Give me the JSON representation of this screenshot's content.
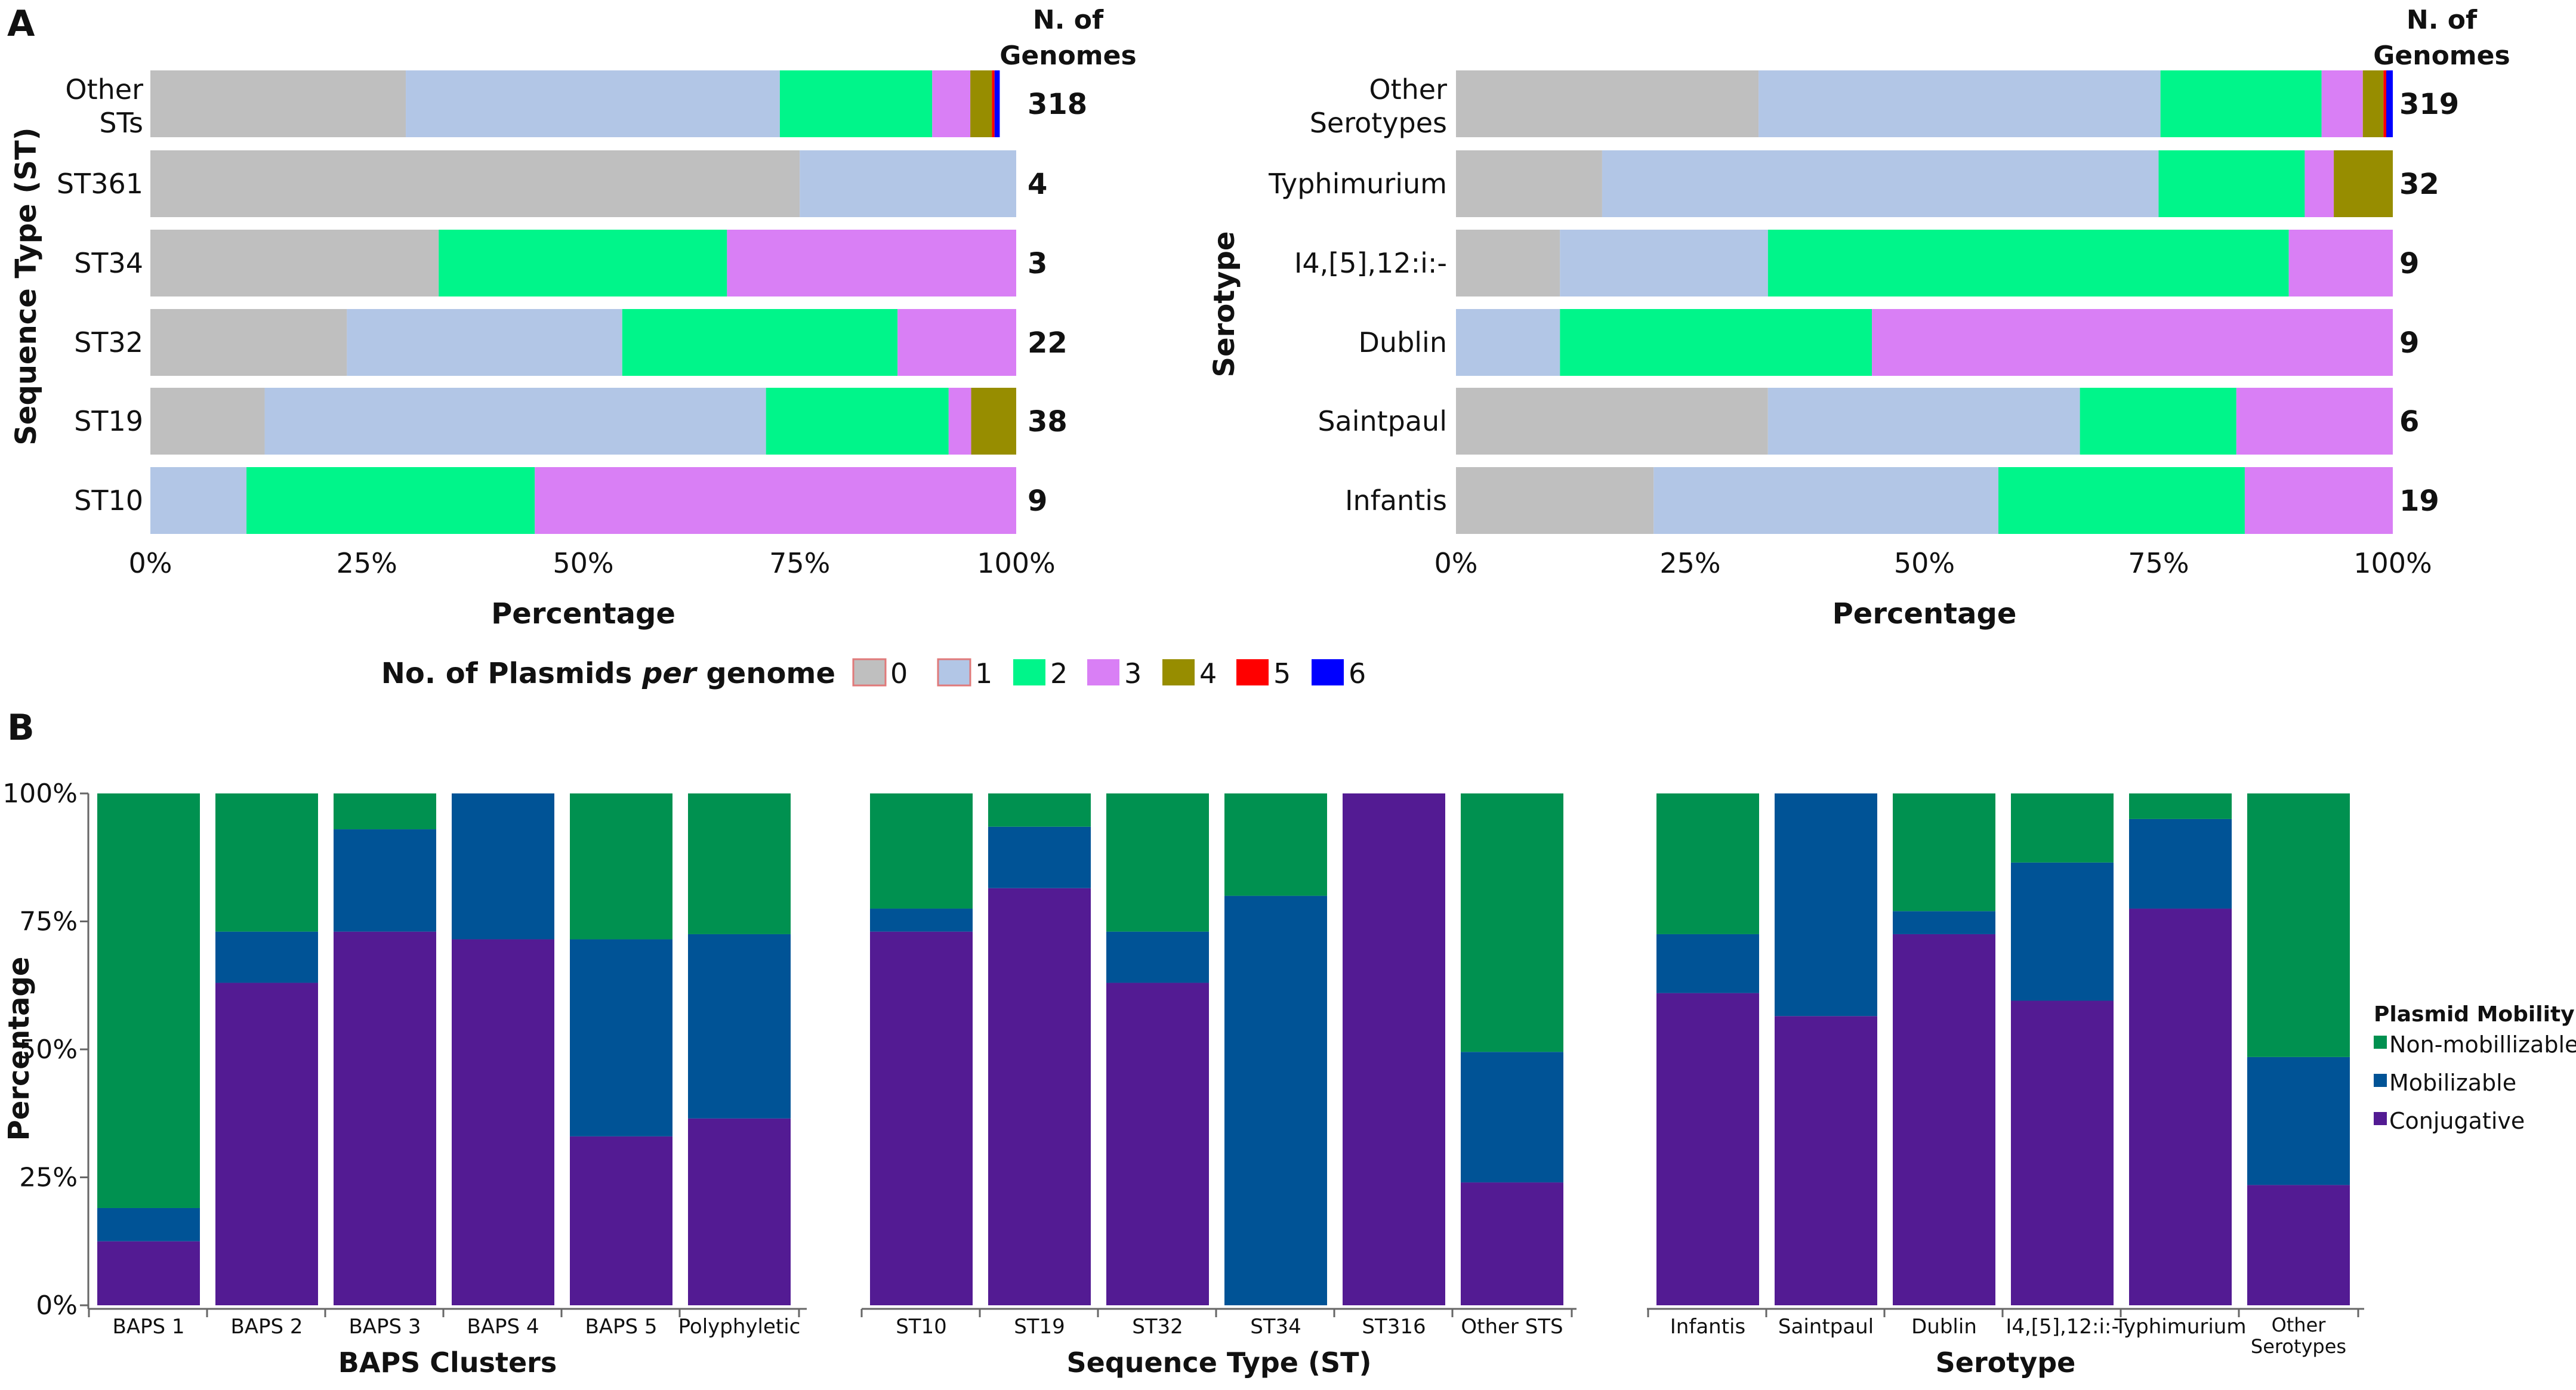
{
  "colors": {
    "count": [
      "#bfbfbf",
      "#b2c6e6",
      "#00f58a",
      "#d97ff5",
      "#978d00",
      "#ff0000",
      "#0000ff"
    ],
    "mobility": {
      "conjugative": "#531b93",
      "mobilizable": "#005396",
      "nonmob": "#009150"
    }
  },
  "panel_labels": [
    "A",
    "B"
  ],
  "legend_a": {
    "title_pre": "No. of Plasmids ",
    "title_em": "per",
    "title_post": " genome",
    "items": [
      "0",
      "1",
      "2",
      "3",
      "4",
      "5",
      "6"
    ]
  },
  "legend_b": {
    "title": "Plasmid Mobility",
    "items": [
      "Non-mobillizable",
      "Mobilizable",
      "Conjugative"
    ]
  },
  "chart_data": [
    {
      "id": "a1",
      "type": "bar",
      "orientation": "horizontal",
      "stacked": true,
      "ylabel": "Sequence Type (ST)",
      "xlabel": "Percentage",
      "xlim": [
        0,
        100
      ],
      "xticks": [
        "0%",
        "25%",
        "50%",
        "75%",
        "100%"
      ],
      "count_header": [
        "N. of",
        "Genomes"
      ],
      "series_names": [
        "0",
        "1",
        "2",
        "3",
        "4",
        "5",
        "6"
      ],
      "rows": [
        {
          "label": [
            "Other",
            "STs"
          ],
          "count": "318",
          "values": [
            29.5,
            43.2,
            17.6,
            4.4,
            2.5,
            0.3,
            0.6
          ]
        },
        {
          "label": [
            "ST361"
          ],
          "count": "4",
          "values": [
            75,
            25,
            0,
            0,
            0,
            0,
            0
          ]
        },
        {
          "label": [
            "ST34"
          ],
          "count": "3",
          "values": [
            33.3,
            0,
            33.3,
            33.4,
            0,
            0,
            0
          ]
        },
        {
          "label": [
            "ST32"
          ],
          "count": "22",
          "values": [
            22.7,
            31.8,
            31.8,
            13.7,
            0,
            0,
            0
          ]
        },
        {
          "label": [
            "ST19"
          ],
          "count": "38",
          "values": [
            13.2,
            57.9,
            21.1,
            2.6,
            5.2,
            0,
            0
          ]
        },
        {
          "label": [
            "ST10"
          ],
          "count": "9",
          "values": [
            0,
            11.1,
            33.3,
            55.6,
            0,
            0,
            0
          ]
        }
      ]
    },
    {
      "id": "a2",
      "type": "bar",
      "orientation": "horizontal",
      "stacked": true,
      "ylabel": "Serotype",
      "xlabel": "Percentage",
      "xlim": [
        0,
        100
      ],
      "xticks": [
        "0%",
        "25%",
        "50%",
        "75%",
        "100%"
      ],
      "count_header": [
        "N. of",
        "Genomes"
      ],
      "series_names": [
        "0",
        "1",
        "2",
        "3",
        "4",
        "5",
        "6"
      ],
      "rows": [
        {
          "label": [
            "Other",
            "Serotypes"
          ],
          "count": "319",
          "values": [
            32.3,
            42.9,
            17.2,
            4.4,
            2.2,
            0.3,
            0.7
          ]
        },
        {
          "label": [
            "Typhimurium"
          ],
          "count": "32",
          "values": [
            15.6,
            59.4,
            15.6,
            3.1,
            6.3,
            0,
            0
          ]
        },
        {
          "label": [
            "I4,[5],12:i:-"
          ],
          "count": "9",
          "values": [
            11.1,
            22.2,
            55.6,
            11.1,
            0,
            0,
            0
          ]
        },
        {
          "label": [
            "Dublin"
          ],
          "count": "9",
          "values": [
            0,
            11.1,
            33.3,
            55.6,
            0,
            0,
            0
          ]
        },
        {
          "label": [
            "Saintpaul"
          ],
          "count": "6",
          "values": [
            33.3,
            33.3,
            16.7,
            16.7,
            0,
            0,
            0
          ]
        },
        {
          "label": [
            "Infantis"
          ],
          "count": "19",
          "values": [
            21.1,
            36.8,
            26.3,
            15.8,
            0,
            0,
            0
          ]
        }
      ]
    },
    {
      "id": "b1",
      "type": "bar",
      "stacked": true,
      "ylabel": "Percentage",
      "xlabel": "BAPS Clusters",
      "ylim": [
        0,
        100
      ],
      "yticks": [
        "0%",
        "25%",
        "50%",
        "75%",
        "100%"
      ],
      "series_names": [
        "Conjugative",
        "Mobilizable",
        "Non-mobillizable"
      ],
      "categories": [
        [
          "BAPS 1"
        ],
        [
          "BAPS 2"
        ],
        [
          "BAPS 3"
        ],
        [
          "BAPS 4"
        ],
        [
          "BAPS 5"
        ],
        [
          "Polyphyletic"
        ]
      ],
      "values": [
        [
          12.5,
          6.5,
          81
        ],
        [
          63,
          10,
          27
        ],
        [
          73,
          20,
          7
        ],
        [
          71.5,
          28.5,
          0
        ],
        [
          33,
          38.5,
          28.5
        ],
        [
          36.5,
          36,
          27.5
        ]
      ]
    },
    {
      "id": "b2",
      "type": "bar",
      "stacked": true,
      "xlabel": "Sequence Type (ST)",
      "ylim": [
        0,
        100
      ],
      "series_names": [
        "Conjugative",
        "Mobilizable",
        "Non-mobillizable"
      ],
      "categories": [
        [
          "ST10"
        ],
        [
          "ST19"
        ],
        [
          "ST32"
        ],
        [
          "ST34"
        ],
        [
          "ST316"
        ],
        [
          "Other STS"
        ]
      ],
      "values": [
        [
          73,
          4.5,
          22.5
        ],
        [
          81.5,
          12,
          6.5
        ],
        [
          63,
          10,
          27
        ],
        [
          0,
          80,
          20
        ],
        [
          100,
          0,
          0
        ],
        [
          24,
          25.5,
          50.5
        ]
      ]
    },
    {
      "id": "b3",
      "type": "bar",
      "stacked": true,
      "xlabel": "Serotype",
      "ylim": [
        0,
        100
      ],
      "series_names": [
        "Conjugative",
        "Mobilizable",
        "Non-mobillizable"
      ],
      "categories": [
        [
          "Infantis"
        ],
        [
          "Saintpaul"
        ],
        [
          "Dublin"
        ],
        [
          "I4,[5],12:i:-"
        ],
        [
          "Typhimurium"
        ],
        [
          "Other",
          "Serotypes"
        ]
      ],
      "values": [
        [
          61,
          11.5,
          27.5
        ],
        [
          56.5,
          43.5,
          0
        ],
        [
          72.5,
          4.5,
          23
        ],
        [
          59.5,
          27,
          13.5
        ],
        [
          77.5,
          17.5,
          5
        ],
        [
          23.5,
          25,
          51.5
        ]
      ]
    }
  ]
}
